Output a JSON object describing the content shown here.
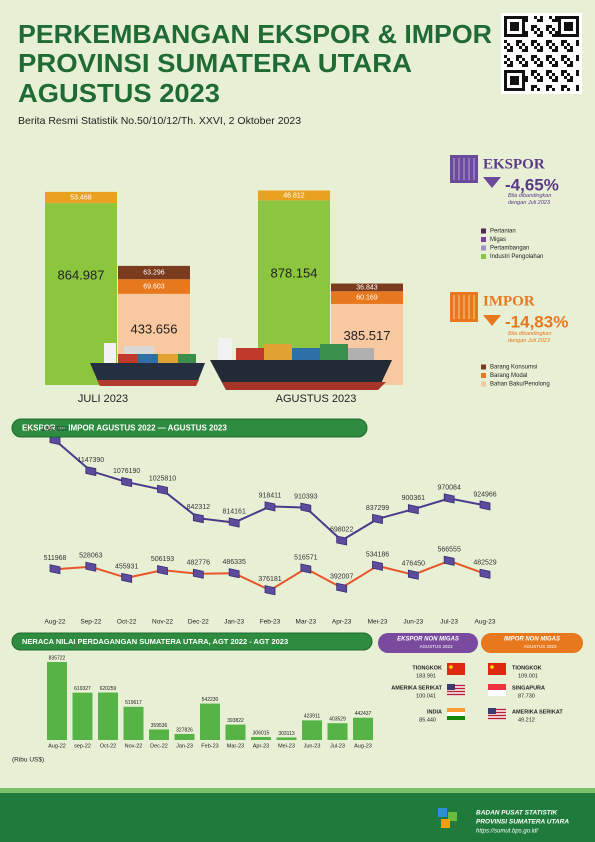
{
  "header": {
    "title_lines": [
      "PERKEMBANGAN EKSPOR & IMPOR",
      "PROVINSI SUMATERA UTARA",
      "AGUSTUS 2023"
    ],
    "subtitle": "Berita Resmi Statistik No.50/10/12/Th. XXVI, 2 Oktober 2023"
  },
  "summary": {
    "ekspor": {
      "label": "EKSPOR",
      "change": "-4,65%",
      "note": "Bila dibandingkan dengan Juli 2023"
    },
    "impor": {
      "label": "IMPOR",
      "change": "-14,83%",
      "note": "Bila dibandingkan dengan Juli 2023"
    }
  },
  "chart_data": [
    {
      "type": "bar",
      "categories": [
        "JULI 2023",
        "AGUSTUS 2023"
      ],
      "ekspor": {
        "series": [
          {
            "color": "#8cc63f",
            "values": [
              864987,
              878154
            ],
            "value_labels": [
              "864.987",
              "878.154"
            ]
          },
          {
            "color": "#e9a21f",
            "values": [
              53468,
              46812
            ],
            "value_labels": [
              "53.468",
              "46.812"
            ]
          }
        ]
      },
      "impor": {
        "series": [
          {
            "color": "#f8c8a0",
            "values": [
              433656,
              385517
            ],
            "value_labels": [
              "433.656",
              "385.517"
            ]
          },
          {
            "color": "#e8781e",
            "values": [
              69603,
              60169
            ],
            "value_labels": [
              "69.603",
              "60.169"
            ]
          },
          {
            "color": "#7b3b1f",
            "values": [
              63296,
              36843
            ],
            "value_labels": [
              "63.296",
              "36.843"
            ]
          }
        ]
      },
      "ylim": [
        0,
        975000
      ],
      "legends": {
        "ekspor": [
          {
            "name": "Pertanian",
            "color": "#4e2a55"
          },
          {
            "name": "Migas",
            "color": "#7a3f9a"
          },
          {
            "name": "Pertambangan",
            "color": "#9f93c6"
          },
          {
            "name": "Industri Pengolahan",
            "color": "#8cc63f"
          }
        ],
        "impor": [
          {
            "name": "Barang Konsumsi",
            "color": "#7b3b1f"
          },
          {
            "name": "Barang Modal",
            "color": "#e8781e"
          },
          {
            "name": "Bahan Baku/Penolong",
            "color": "#f8c8a0"
          }
        ]
      }
    },
    {
      "type": "line",
      "title": "EKSPOR — IMPOR AGUSTUS 2022 — AGUSTUS 2023",
      "categories": [
        "Aug-22",
        "Sep-22",
        "Oct-22",
        "Nov-22",
        "Dec-22",
        "Jan-23",
        "Feb-23",
        "Mar-23",
        "Apr-23",
        "Mei-23",
        "Jun-23",
        "Jul-23",
        "Aug-23"
      ],
      "series": [
        {
          "color": "#4b3a8c",
          "values": [
            1347690,
            1147390,
            1076190,
            1025810,
            842312,
            814161,
            918411,
            910393,
            698022,
            837299,
            900361,
            970084,
            924966
          ]
        },
        {
          "color": "#e8552a",
          "values": [
            511968,
            528063,
            455931,
            506193,
            482776,
            486335,
            376181,
            516571,
            392007,
            534186,
            476450,
            566555,
            482529
          ]
        }
      ],
      "ylim": [
        300000,
        1400000
      ]
    },
    {
      "type": "bar",
      "title": "NERACA NILAI PERDAGANGAN SUMATERA UTARA, AGT 2022 - AGT 2023",
      "categories": [
        "Aug-22",
        "sep-22",
        "Oct-22",
        "Nov-22",
        "Dec-22",
        "Jan-23",
        "Feb-23",
        "Mar-23",
        "Apr-23",
        "Mei-23",
        "Jun-23",
        "Jul-23",
        "Aug-23"
      ],
      "values": [
        835722,
        619327,
        620259,
        519617,
        359536,
        327826,
        542230,
        393822,
        306015,
        303113,
        423911,
        403529,
        442437
      ],
      "color": "#56b447",
      "ylim": [
        285000,
        850000
      ],
      "unit_note": "(Ribu US$)"
    }
  ],
  "trade_partners": {
    "ekspor": {
      "title": "EKSPOR NON MIGAS",
      "subtitle": "AGUSTUS 2023",
      "rows": [
        {
          "country": "TIONGKOK",
          "value": "183.991"
        },
        {
          "country": "AMERIKA SERIKAT",
          "value": "100.041"
        },
        {
          "country": "INDIA",
          "value": "85.440"
        }
      ]
    },
    "impor": {
      "title": "IMPOR NON MIGAS",
      "subtitle": "AGUSTUS 2023",
      "rows": [
        {
          "country": "TIONGKOK",
          "value": "109.001"
        },
        {
          "country": "SINGAPURA",
          "value": "87.730"
        },
        {
          "country": "AMERIKA SERIKAT",
          "value": "49.212"
        }
      ]
    }
  },
  "footer": {
    "agency": "BADAN PUSAT STATISTIK",
    "region": "PROVINSI SUMATERA UTARA",
    "url": "https://sumut.bps.go.id/"
  }
}
